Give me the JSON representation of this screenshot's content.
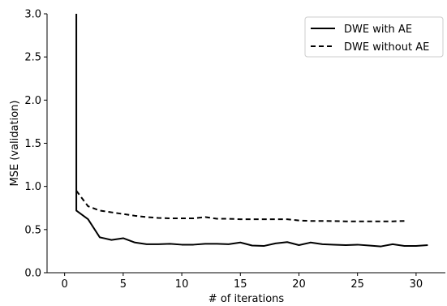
{
  "chart_data": {
    "type": "line",
    "xlabel": "# of iterations",
    "ylabel": "MSE (validation)",
    "xlim": [
      -1.5,
      32.5
    ],
    "ylim": [
      0.0,
      3.0
    ],
    "xticks": [
      0,
      5,
      10,
      15,
      20,
      25,
      30
    ],
    "yticks": [
      0.0,
      0.5,
      1.0,
      1.5,
      2.0,
      2.5,
      3.0
    ],
    "ytick_labels": [
      "0.0",
      "0.5",
      "1.0",
      "1.5",
      "2.0",
      "2.5",
      "3.0"
    ],
    "legend_position": "top-right",
    "series": [
      {
        "name": "DWE with AE",
        "style": "solid",
        "color": "#000000",
        "x": [
          1,
          1,
          2,
          3,
          4,
          5,
          6,
          7,
          8,
          9,
          10,
          11,
          12,
          13,
          14,
          15,
          16,
          17,
          18,
          19,
          20,
          21,
          22,
          23,
          24,
          25,
          26,
          27,
          28,
          29,
          30,
          31
        ],
        "y": [
          3.0,
          0.72,
          0.62,
          0.41,
          0.38,
          0.4,
          0.35,
          0.33,
          0.33,
          0.335,
          0.325,
          0.325,
          0.335,
          0.335,
          0.33,
          0.35,
          0.315,
          0.31,
          0.34,
          0.355,
          0.32,
          0.35,
          0.33,
          0.325,
          0.32,
          0.325,
          0.315,
          0.305,
          0.33,
          0.31,
          0.31,
          0.32
        ]
      },
      {
        "name": "DWE without AE",
        "style": "dashed",
        "color": "#000000",
        "x": [
          1,
          2,
          3,
          4,
          5,
          6,
          7,
          8,
          9,
          10,
          11,
          12,
          13,
          14,
          15,
          16,
          17,
          18,
          19,
          20,
          21,
          22,
          23,
          24,
          25,
          26,
          27,
          28,
          29
        ],
        "y": [
          0.95,
          0.77,
          0.72,
          0.7,
          0.68,
          0.66,
          0.645,
          0.635,
          0.63,
          0.63,
          0.63,
          0.645,
          0.625,
          0.625,
          0.62,
          0.62,
          0.62,
          0.62,
          0.62,
          0.605,
          0.6,
          0.6,
          0.598,
          0.595,
          0.595,
          0.595,
          0.595,
          0.595,
          0.6
        ]
      }
    ]
  }
}
